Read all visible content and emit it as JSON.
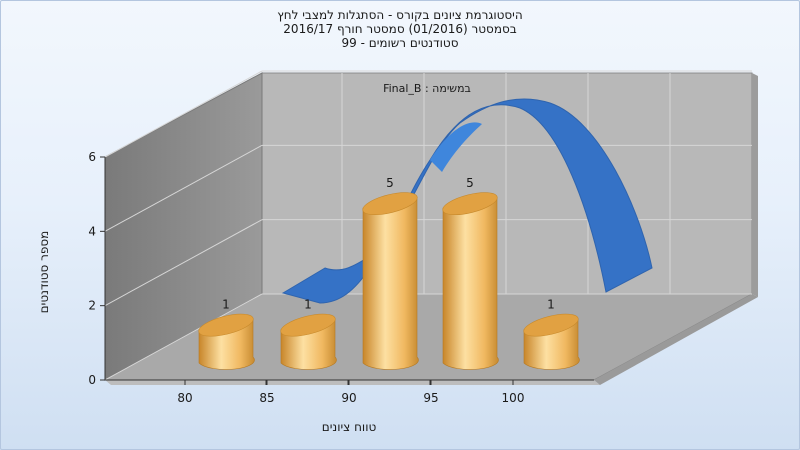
{
  "chart_data": {
    "type": "bar",
    "title_lines": [
      "היסטוגרמת ציונים בקורס - הסתגלות למצבי לחץ",
      "בסמסטר  (01/2016)  סמסטר חורף 2016/17",
      "סטודנטים רשומים - 99"
    ],
    "series_label": "במשימה : Final_B",
    "categories": [
      "80",
      "85",
      "90",
      "95",
      "100"
    ],
    "values": [
      1,
      1,
      5,
      5,
      1
    ],
    "ylim": [
      0,
      6
    ],
    "yticks": [
      0,
      2,
      4,
      6
    ],
    "xlabel": "טווח ציונים",
    "ylabel": "מספר סטודנטים",
    "trend_curve": true,
    "grid": true,
    "colors": {
      "bar_light": "#fde2a6",
      "bar_mid": "#f0b860",
      "bar_dark": "#c88a2c",
      "bar_top": "#e3a443",
      "curve": "#3370c4",
      "curve_light": "#3c82d8",
      "back_wall": "#b9b9b9",
      "side_wall": "#8c8c8c",
      "floor": "#a8a8a8"
    }
  }
}
